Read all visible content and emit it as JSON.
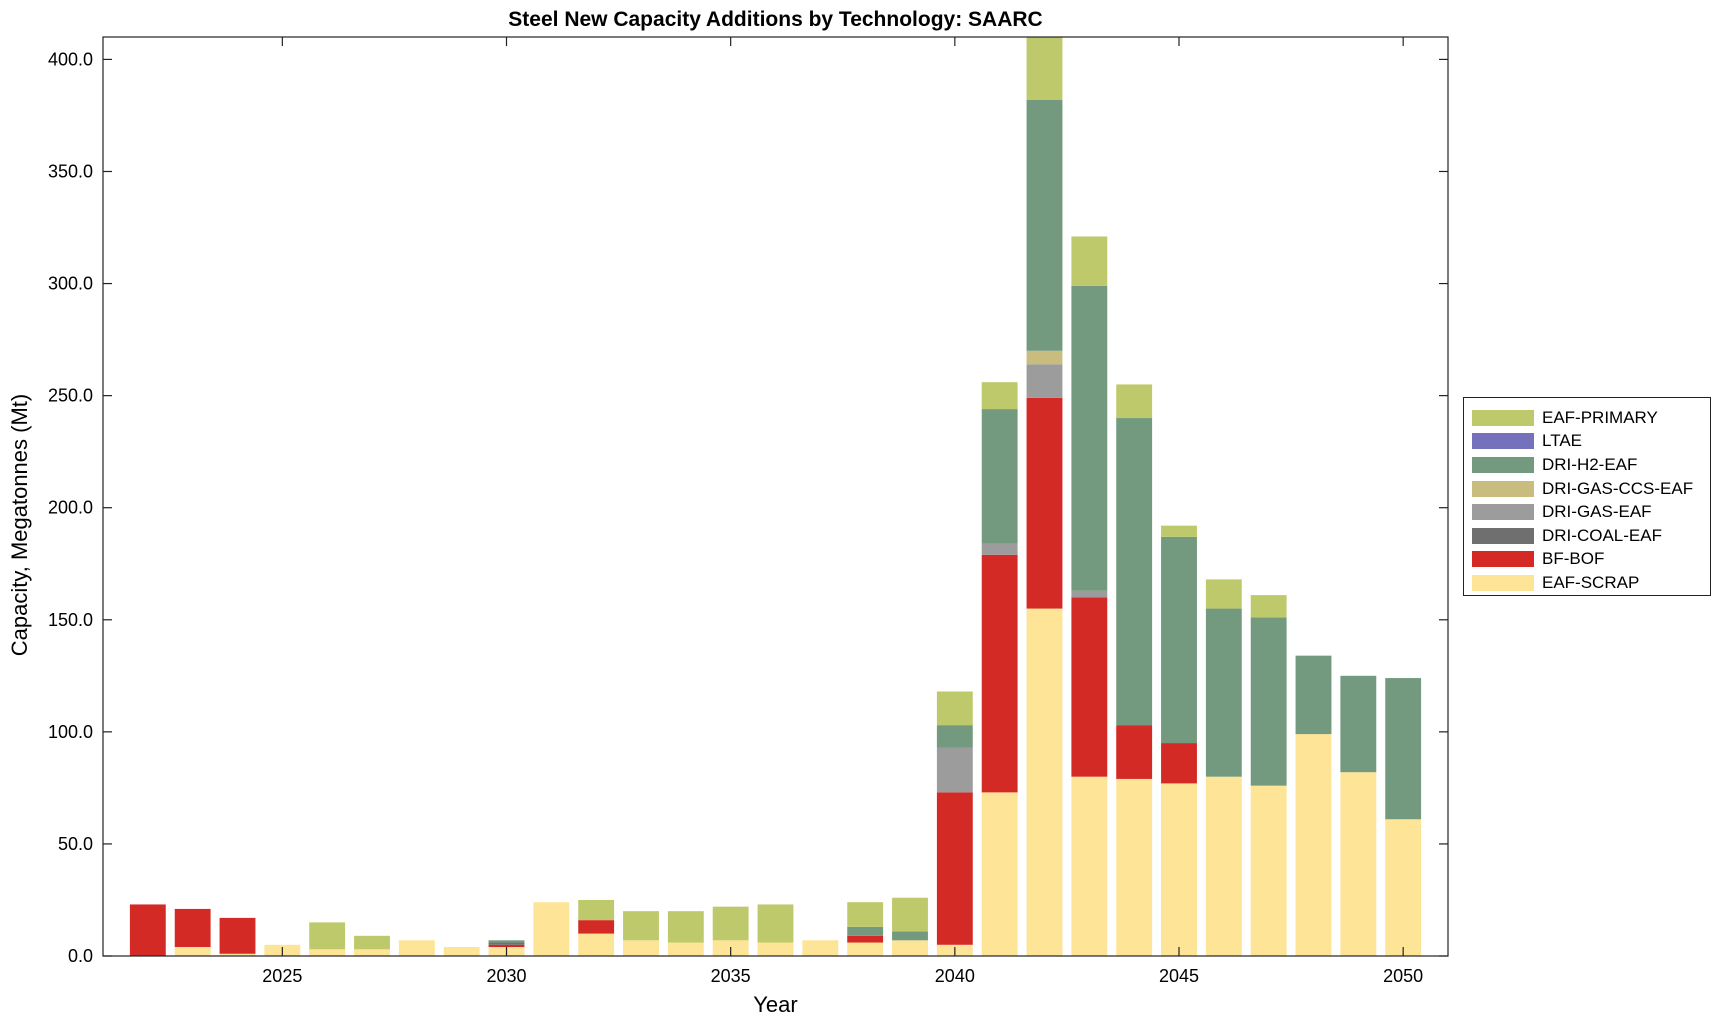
{
  "chart_data": {
    "type": "bar",
    "stacked": true,
    "title": "Steel New Capacity Additions by Technology: SAARC",
    "xlabel": "Year",
    "ylabel": "Capacity, Megatonnes (Mt)",
    "x": [
      2022,
      2023,
      2024,
      2025,
      2026,
      2027,
      2028,
      2029,
      2030,
      2031,
      2032,
      2033,
      2034,
      2035,
      2036,
      2037,
      2038,
      2039,
      2040,
      2041,
      2042,
      2043,
      2044,
      2045,
      2046,
      2047,
      2048,
      2049,
      2050
    ],
    "xlim": [
      2021,
      2051
    ],
    "ylim": [
      0,
      410
    ],
    "xticks": [
      "2025",
      "2030",
      "2035",
      "2040",
      "2045",
      "2050"
    ],
    "xtick_values": [
      2025,
      2030,
      2035,
      2040,
      2045,
      2050
    ],
    "yticks": [
      "0.0",
      "50.0",
      "100.0",
      "150.0",
      "200.0",
      "250.0",
      "300.0",
      "350.0",
      "400.0"
    ],
    "ytick_values": [
      0,
      50,
      100,
      150,
      200,
      250,
      300,
      350,
      400
    ],
    "grid": false,
    "legend_position": "outside-right",
    "series": [
      {
        "name": "EAF-SCRAP",
        "color": "#FDE496",
        "values": [
          0,
          4,
          1,
          5,
          3,
          3,
          7,
          4,
          4,
          24,
          10,
          7,
          6,
          7,
          6,
          7,
          6,
          7,
          5,
          73,
          155,
          80,
          79,
          77,
          80,
          76,
          99,
          82,
          61
        ]
      },
      {
        "name": "BF-BOF",
        "color": "#D42A26",
        "values": [
          23,
          17,
          16,
          0,
          0,
          0,
          0,
          0,
          1,
          0,
          6,
          0,
          0,
          0,
          0,
          0,
          3,
          0,
          68,
          106,
          94,
          80,
          24,
          18,
          0,
          0,
          0,
          0,
          0
        ]
      },
      {
        "name": "DRI-COAL-EAF",
        "color": "#6F6F6F",
        "values": [
          0,
          0,
          0,
          0,
          0,
          0,
          0,
          0,
          1,
          0,
          0,
          0,
          0,
          0,
          0,
          0,
          0,
          0,
          0,
          0,
          0,
          0,
          0,
          0,
          0,
          0,
          0,
          0,
          0
        ]
      },
      {
        "name": "DRI-GAS-EAF",
        "color": "#9C9C9C",
        "values": [
          0,
          0,
          0,
          0,
          0,
          0,
          0,
          0,
          0,
          0,
          0,
          0,
          0,
          0,
          0,
          0,
          0,
          0,
          20,
          5,
          15,
          3,
          0,
          0,
          0,
          0,
          0,
          0,
          0
        ]
      },
      {
        "name": "DRI-GAS-CCS-EAF",
        "color": "#C8BD7E",
        "values": [
          0,
          0,
          0,
          0,
          0,
          0,
          0,
          0,
          0,
          0,
          0,
          0,
          0,
          0,
          0,
          0,
          0,
          0,
          0,
          0,
          6,
          0,
          0,
          0,
          0,
          0,
          0,
          0,
          0
        ]
      },
      {
        "name": "DRI-H2-EAF",
        "color": "#739A7E",
        "values": [
          0,
          0,
          0,
          0,
          0,
          0,
          0,
          0,
          1,
          0,
          0,
          0,
          0,
          0,
          0,
          0,
          4,
          4,
          10,
          60,
          112,
          136,
          137,
          92,
          75,
          75,
          35,
          43,
          63
        ]
      },
      {
        "name": "LTAE",
        "color": "#7571BD",
        "values": [
          0,
          0,
          0,
          0,
          0,
          0,
          0,
          0,
          0,
          0,
          0,
          0,
          0,
          0,
          0,
          0,
          0,
          0,
          0,
          0,
          0,
          0,
          0,
          0,
          0,
          0,
          0,
          0,
          0
        ]
      },
      {
        "name": "EAF-PRIMARY",
        "color": "#BDC96A",
        "values": [
          0,
          0,
          0,
          0,
          12,
          6,
          0,
          0,
          0,
          0,
          9,
          13,
          14,
          15,
          17,
          0,
          11,
          15,
          15,
          12,
          30,
          22,
          15,
          5,
          13,
          10,
          0,
          0,
          0
        ]
      }
    ]
  },
  "legend": {
    "items": [
      {
        "label": "EAF-PRIMARY",
        "color": "#BDC96A"
      },
      {
        "label": "LTAE",
        "color": "#7571BD"
      },
      {
        "label": "DRI-H2-EAF",
        "color": "#739A7E"
      },
      {
        "label": "DRI-GAS-CCS-EAF",
        "color": "#C8BD7E"
      },
      {
        "label": "DRI-GAS-EAF",
        "color": "#9C9C9C"
      },
      {
        "label": "DRI-COAL-EAF",
        "color": "#6F6F6F"
      },
      {
        "label": "BF-BOF",
        "color": "#D42A26"
      },
      {
        "label": "EAF-SCRAP",
        "color": "#FDE496"
      }
    ]
  }
}
